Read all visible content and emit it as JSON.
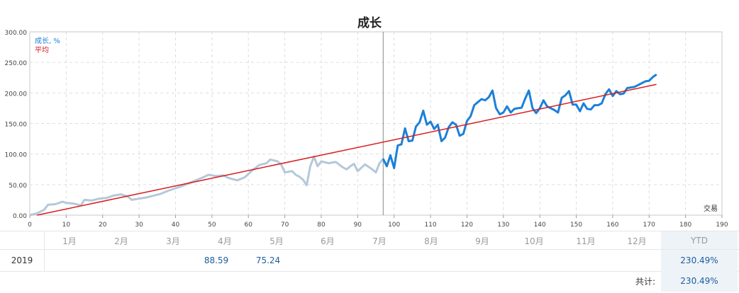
{
  "title": "成长",
  "legend": {
    "growth": "成长, %",
    "average": "平均"
  },
  "x_axis_label": "交易",
  "colors": {
    "growth_past": "#b4c8d9",
    "growth_recent": "#1c80d8",
    "average": "#d81c1c",
    "grid": "#dddddd"
  },
  "chart_data": {
    "type": "line",
    "title": "成长",
    "xlabel": "交易",
    "ylabel": "",
    "xlim": [
      0,
      190
    ],
    "ylim": [
      0,
      300
    ],
    "x_ticks": [
      0,
      10,
      20,
      30,
      40,
      50,
      60,
      70,
      80,
      90,
      100,
      110,
      120,
      130,
      140,
      150,
      160,
      170,
      180,
      190
    ],
    "y_ticks": [
      0,
      50,
      100,
      150,
      200,
      250,
      300
    ],
    "y_tick_labels": [
      "0.00",
      "50.00",
      "100.00",
      "150.00",
      "200.00",
      "250.00",
      "300.00"
    ],
    "grid": true,
    "legend_position": "top-left",
    "highlight_from_x": 97,
    "series": [
      {
        "name": "成长, %",
        "points": [
          [
            0,
            0
          ],
          [
            2,
            3
          ],
          [
            4,
            9
          ],
          [
            5,
            17
          ],
          [
            7,
            18
          ],
          [
            9,
            22
          ],
          [
            10,
            20
          ],
          [
            12,
            19
          ],
          [
            14,
            16
          ],
          [
            15,
            25
          ],
          [
            17,
            24
          ],
          [
            19,
            27
          ],
          [
            21,
            28
          ],
          [
            23,
            32
          ],
          [
            25,
            34
          ],
          [
            27,
            30
          ],
          [
            28,
            25
          ],
          [
            30,
            27
          ],
          [
            32,
            29
          ],
          [
            34,
            32
          ],
          [
            36,
            35
          ],
          [
            38,
            40
          ],
          [
            40,
            44
          ],
          [
            42,
            48
          ],
          [
            44,
            53
          ],
          [
            46,
            58
          ],
          [
            48,
            63
          ],
          [
            49,
            66
          ],
          [
            51,
            64
          ],
          [
            53,
            65
          ],
          [
            55,
            60
          ],
          [
            57,
            57
          ],
          [
            59,
            62
          ],
          [
            61,
            73
          ],
          [
            63,
            82
          ],
          [
            65,
            85
          ],
          [
            66,
            91
          ],
          [
            68,
            88
          ],
          [
            69,
            83
          ],
          [
            70,
            70
          ],
          [
            72,
            72
          ],
          [
            73,
            66
          ],
          [
            74,
            63
          ],
          [
            75,
            58
          ],
          [
            76,
            49
          ],
          [
            77,
            80
          ],
          [
            78,
            96
          ],
          [
            79,
            80
          ],
          [
            80,
            88
          ],
          [
            82,
            85
          ],
          [
            84,
            87
          ],
          [
            86,
            78
          ],
          [
            87,
            75
          ],
          [
            88,
            80
          ],
          [
            89,
            84
          ],
          [
            90,
            72
          ],
          [
            92,
            83
          ],
          [
            94,
            75
          ],
          [
            95,
            70
          ],
          [
            96,
            85
          ],
          [
            97,
            92
          ],
          [
            98,
            80
          ],
          [
            99,
            98
          ],
          [
            100,
            77
          ],
          [
            101,
            114
          ],
          [
            102,
            116
          ],
          [
            103,
            142
          ],
          [
            104,
            121
          ],
          [
            105,
            122
          ],
          [
            106,
            145
          ],
          [
            107,
            152
          ],
          [
            108,
            171
          ],
          [
            109,
            148
          ],
          [
            110,
            153
          ],
          [
            111,
            141
          ],
          [
            112,
            148
          ],
          [
            113,
            121
          ],
          [
            114,
            127
          ],
          [
            115,
            144
          ],
          [
            116,
            152
          ],
          [
            117,
            148
          ],
          [
            118,
            130
          ],
          [
            119,
            133
          ],
          [
            120,
            154
          ],
          [
            121,
            162
          ],
          [
            122,
            180
          ],
          [
            123,
            185
          ],
          [
            124,
            190
          ],
          [
            125,
            188
          ],
          [
            126,
            193
          ],
          [
            127,
            204
          ],
          [
            128,
            175
          ],
          [
            129,
            165
          ],
          [
            130,
            168
          ],
          [
            131,
            178
          ],
          [
            132,
            168
          ],
          [
            133,
            174
          ],
          [
            134,
            175
          ],
          [
            135,
            176
          ],
          [
            136,
            191
          ],
          [
            137,
            204
          ],
          [
            138,
            175
          ],
          [
            139,
            167
          ],
          [
            140,
            175
          ],
          [
            141,
            188
          ],
          [
            142,
            178
          ],
          [
            143,
            175
          ],
          [
            144,
            172
          ],
          [
            145,
            168
          ],
          [
            146,
            192
          ],
          [
            147,
            196
          ],
          [
            148,
            203
          ],
          [
            149,
            181
          ],
          [
            150,
            181
          ],
          [
            151,
            170
          ],
          [
            152,
            183
          ],
          [
            153,
            174
          ],
          [
            154,
            173
          ],
          [
            155,
            180
          ],
          [
            156,
            180
          ],
          [
            157,
            183
          ],
          [
            158,
            198
          ],
          [
            159,
            206
          ],
          [
            160,
            195
          ],
          [
            161,
            203
          ],
          [
            162,
            198
          ],
          [
            163,
            199
          ],
          [
            164,
            208
          ],
          [
            165,
            209
          ],
          [
            166,
            210
          ],
          [
            167,
            213
          ],
          [
            168,
            216
          ],
          [
            169,
            219
          ],
          [
            170,
            220
          ],
          [
            171,
            226
          ],
          [
            172,
            230
          ]
        ]
      },
      {
        "name": "平均",
        "points": [
          [
            2,
            0
          ],
          [
            172,
            214
          ]
        ]
      }
    ]
  },
  "table": {
    "months": [
      "1月",
      "2月",
      "3月",
      "4月",
      "5月",
      "6月",
      "7月",
      "8月",
      "9月",
      "10月",
      "11月",
      "12月"
    ],
    "ytd_header": "YTD",
    "year": "2019",
    "month_values": [
      "",
      "",
      "",
      "88.59",
      "75.24",
      "",
      "",
      "",
      "",
      "",
      "",
      ""
    ],
    "ytd_value": "230.49%",
    "total_label": "共计:",
    "total_value": "230.49%"
  }
}
